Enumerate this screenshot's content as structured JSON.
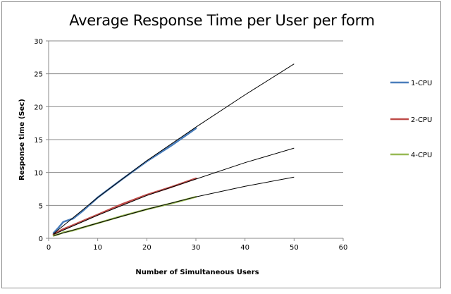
{
  "chart_data": {
    "type": "line",
    "title": "Average Response Time per User per form",
    "xlabel": "Number of Simultaneous Users",
    "ylabel": "Response time (Sec)",
    "xlim": [
      0,
      60
    ],
    "ylim": [
      0,
      30
    ],
    "xticks": [
      0,
      10,
      20,
      30,
      40,
      50,
      60
    ],
    "yticks": [
      0,
      5,
      10,
      15,
      20,
      25,
      30
    ],
    "grid": "horizontal",
    "legend_position": "right",
    "series": [
      {
        "name": "1-CPU",
        "color": "#4a7ebb",
        "x": [
          1,
          2,
          3,
          5,
          7,
          10,
          15,
          20,
          25,
          30
        ],
        "y": [
          0.8,
          1.6,
          2.5,
          3.0,
          4.2,
          6.2,
          9.0,
          11.7,
          14.1,
          16.7
        ]
      },
      {
        "name": "2-CPU",
        "color": "#be4b48",
        "x": [
          1,
          2,
          3,
          5,
          10,
          15,
          20,
          25,
          30
        ],
        "y": [
          0.6,
          1.0,
          1.4,
          2.0,
          3.6,
          5.2,
          6.6,
          7.8,
          9.1
        ]
      },
      {
        "name": "4-CPU",
        "color": "#98b954",
        "x": [
          1,
          2,
          3,
          5,
          10,
          15,
          20,
          25,
          30
        ],
        "y": [
          0.4,
          0.6,
          0.9,
          1.2,
          2.3,
          3.4,
          4.4,
          5.3,
          6.3
        ]
      }
    ],
    "trendlines": [
      {
        "series": "1-CPU",
        "color": "#000000",
        "x": [
          1,
          10,
          20,
          30,
          40,
          50
        ],
        "y": [
          0.7,
          6.2,
          11.8,
          16.9,
          21.8,
          26.5
        ]
      },
      {
        "series": "2-CPU",
        "color": "#000000",
        "x": [
          1,
          10,
          20,
          30,
          40,
          50
        ],
        "y": [
          0.6,
          3.5,
          6.5,
          9.0,
          11.5,
          13.7
        ]
      },
      {
        "series": "4-CPU",
        "color": "#000000",
        "x": [
          1,
          10,
          20,
          30,
          40,
          50
        ],
        "y": [
          0.4,
          2.3,
          4.4,
          6.3,
          7.9,
          9.3
        ]
      }
    ]
  }
}
